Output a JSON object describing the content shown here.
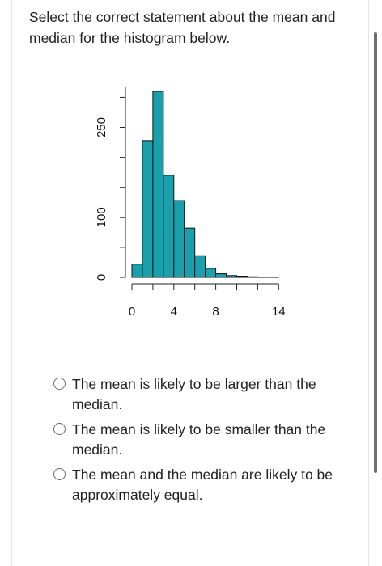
{
  "question": {
    "text": "Select the correct statement about the mean and median for the histogram below."
  },
  "chart_data": {
    "type": "bar",
    "categories": [
      "0-1",
      "1-2",
      "2-3",
      "3-4",
      "4-5",
      "5-6",
      "6-7",
      "7-8",
      "8-9",
      "9-10",
      "10-11",
      "11-12",
      "12-13",
      "13-14"
    ],
    "values": [
      22,
      228,
      310,
      170,
      128,
      82,
      36,
      15,
      6,
      3,
      2,
      1,
      0,
      0
    ],
    "x_ticks": [
      0,
      4,
      8,
      14
    ],
    "x_tick_labels": [
      "0",
      "4",
      "8",
      "14"
    ],
    "y_ticks": [
      0,
      100,
      250
    ],
    "y_tick_labels": [
      "0",
      "100",
      "250"
    ],
    "xlim": [
      0,
      14
    ],
    "ylim": [
      0,
      310
    ],
    "bar_color": "#1aa0ad",
    "grid": false,
    "title": "",
    "xlabel": "",
    "ylabel": ""
  },
  "options": [
    {
      "label": "The mean is likely to be larger than the median."
    },
    {
      "label": "The mean is likely to be smaller than the median."
    },
    {
      "label": "The mean and the median are likely to be approximately equal."
    }
  ]
}
